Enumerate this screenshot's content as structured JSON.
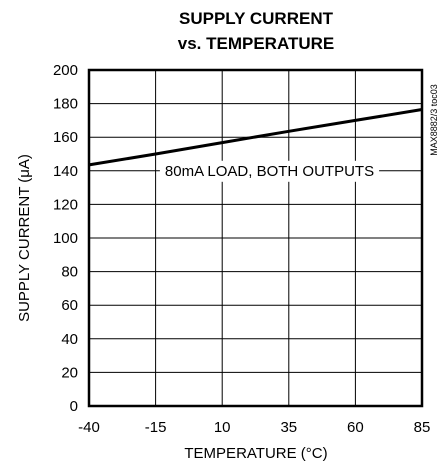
{
  "chart_data": {
    "type": "line",
    "title": [
      "SUPPLY CURRENT",
      "vs. TEMPERATURE"
    ],
    "xlabel": "TEMPERATURE (°C)",
    "ylabel": "SUPPLY CURRENT (μA)",
    "xlim": [
      -40,
      85
    ],
    "ylim": [
      0,
      200
    ],
    "xticks": [
      -40,
      -15,
      10,
      35,
      60,
      85
    ],
    "yticks": [
      0,
      20,
      40,
      60,
      80,
      100,
      120,
      140,
      160,
      180,
      200
    ],
    "grid": true,
    "series": [
      {
        "x": [
          -40,
          -15,
          10,
          35,
          60,
          85
        ],
        "y": [
          143.5,
          150,
          156.8,
          163.5,
          170,
          176.5
        ]
      }
    ],
    "annotation": "80mA LOAD, BOTH OUTPUTS",
    "figure_id": "MAX8882/3 toc03"
  }
}
